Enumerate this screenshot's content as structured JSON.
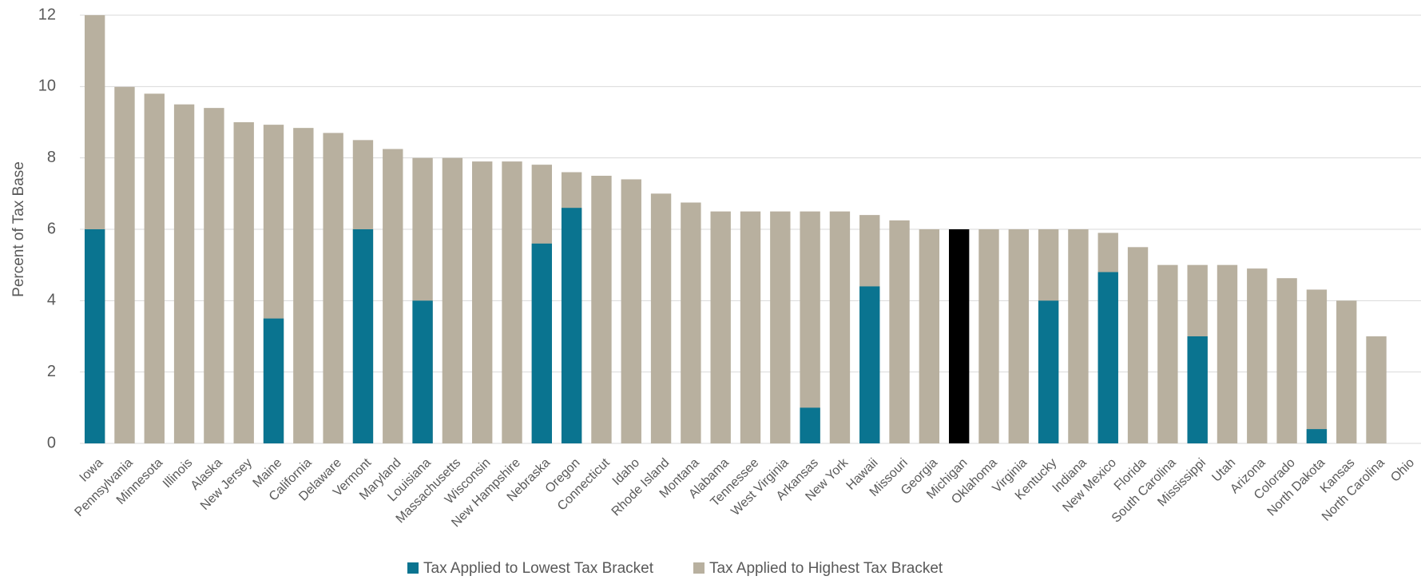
{
  "chart_data": {
    "type": "bar",
    "y_label": "Percent of Tax Base",
    "categories": [
      "Iowa",
      "Pennsylvania",
      "Minnesota",
      "Illinois",
      "Alaska",
      "New Jersey",
      "Maine",
      "California",
      "Delaware",
      "Vermont",
      "Maryland",
      "Louisiana",
      "Massachusetts",
      "Wisconsin",
      "New Hampshire",
      "Nebraska",
      "Oregon",
      "Connecticut",
      "Idaho",
      "Rhode Island",
      "Montana",
      "Alabama",
      "Tennessee",
      "West Virginia",
      "Arkansas",
      "New York",
      "Hawaii",
      "Missouri",
      "Georgia",
      "Michigan",
      "Oklahoma",
      "Virginia",
      "Kentucky",
      "Indiana",
      "New Mexico",
      "Florida",
      "South Carolina",
      "Mississippi",
      "Utah",
      "Arizona",
      "Colorado",
      "North Dakota",
      "Kansas",
      "North Carolina",
      "Ohio"
    ],
    "series": [
      {
        "name": "Tax Applied to Highest Tax Bracket",
        "color": "#b8b09f",
        "values": [
          12,
          9.99,
          9.8,
          9.5,
          9.4,
          9,
          8.93,
          8.84,
          8.7,
          8.5,
          8.25,
          8,
          8,
          7.9,
          7.9,
          7.81,
          7.6,
          7.5,
          7.4,
          7,
          6.75,
          6.5,
          6.5,
          6.5,
          6.5,
          6.5,
          6.4,
          6.25,
          6,
          6,
          6,
          6,
          6,
          6,
          5.9,
          5.5,
          5,
          5,
          5,
          4.9,
          4.63,
          4.31,
          4,
          3,
          null
        ]
      },
      {
        "name": "Tax Applied to Lowest Tax Bracket",
        "color": "#0a7490",
        "values": [
          6,
          null,
          null,
          null,
          null,
          null,
          3.5,
          null,
          null,
          6,
          null,
          4,
          null,
          null,
          null,
          5.6,
          6.6,
          null,
          null,
          null,
          null,
          null,
          null,
          null,
          1,
          null,
          4.4,
          null,
          null,
          null,
          null,
          null,
          4,
          null,
          4.8,
          null,
          null,
          3,
          null,
          null,
          null,
          0.4,
          null,
          null,
          null
        ]
      }
    ],
    "highlight": {
      "category": "Michigan",
      "color": "#000000"
    },
    "ylim": [
      0,
      12
    ],
    "yticks": [
      0,
      2,
      4,
      6,
      8,
      10,
      12
    ],
    "grid": true,
    "legend": "bottom"
  }
}
